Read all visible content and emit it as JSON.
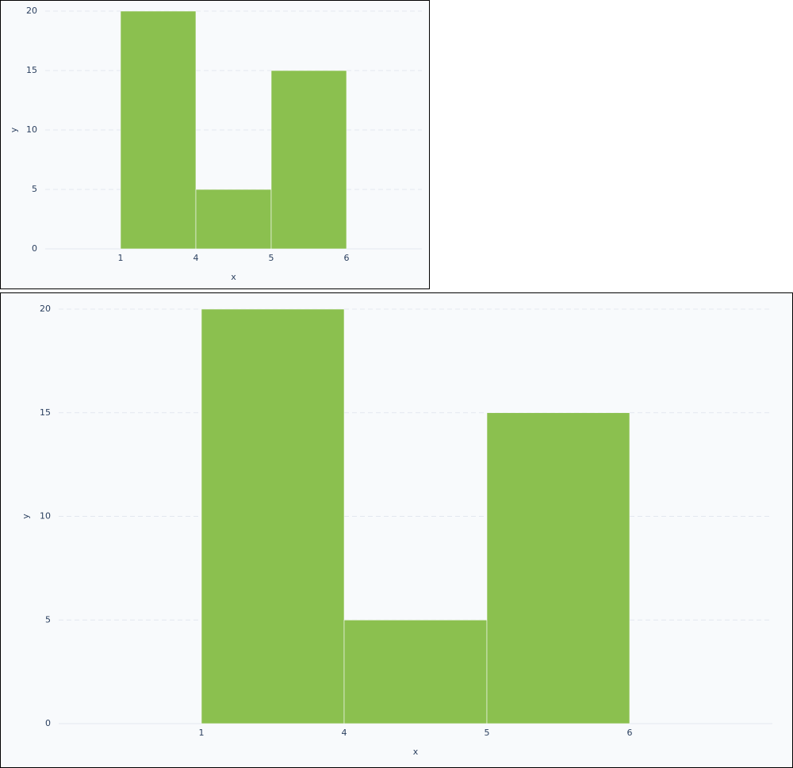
{
  "chart_data": [
    {
      "type": "histogram",
      "bins": [
        1,
        4,
        5,
        6
      ],
      "values": [
        20,
        5,
        15
      ],
      "color": "#8bc04f",
      "xlabel": "x",
      "ylabel": "y",
      "ylim": [
        0,
        20
      ],
      "yticks": [
        0,
        5,
        10,
        15,
        20
      ],
      "grid": true
    },
    {
      "type": "histogram",
      "bins": [
        1,
        4,
        5,
        6
      ],
      "values": [
        20,
        5,
        15
      ],
      "color": "#8bc04f",
      "xlabel": "x",
      "ylabel": "y",
      "ylim": [
        0,
        20
      ],
      "yticks": [
        0,
        5,
        10,
        15,
        20
      ],
      "grid": true
    }
  ]
}
